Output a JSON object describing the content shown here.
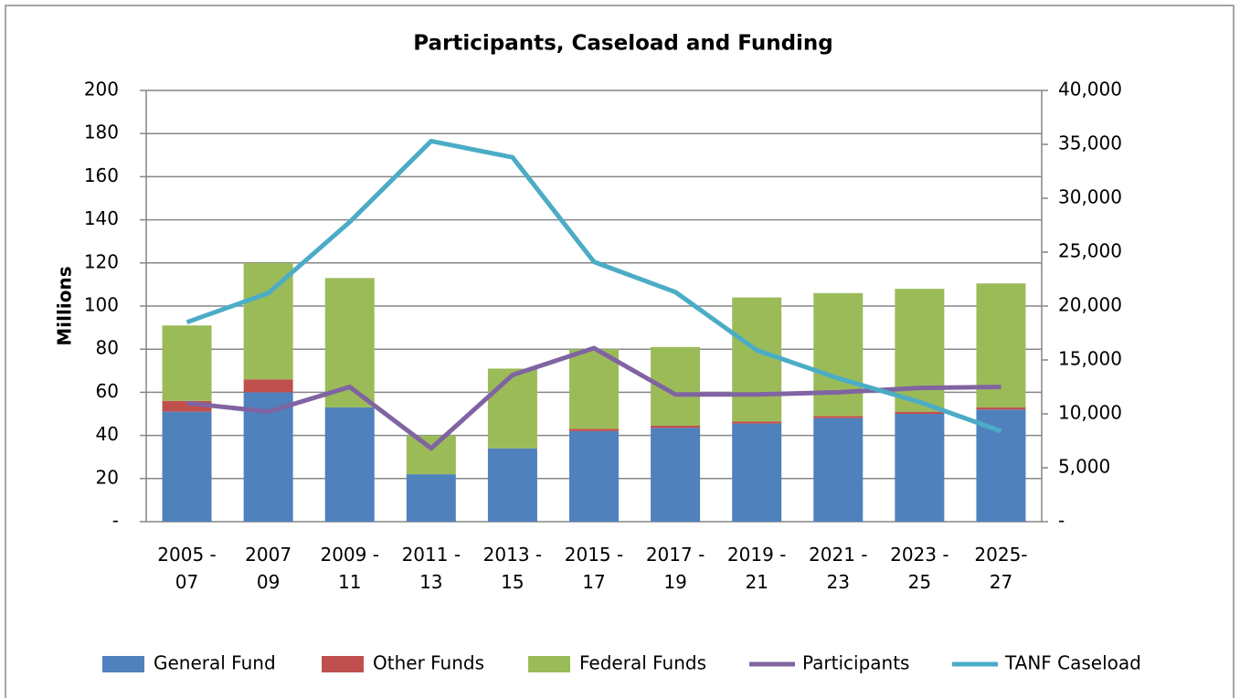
{
  "chart_data": {
    "type": "bar",
    "title": "Participants, Caseload and Funding",
    "y_label": "Millions",
    "categories": [
      "2005 -\n07",
      "2007\n09",
      "2009 -\n11",
      "2011 -\n13",
      "2013 -\n15",
      "2015 -\n17",
      "2017 -\n19",
      "2019 -\n21",
      "2021 -\n23",
      "2023 -\n25",
      "2025-\n27"
    ],
    "series": [
      {
        "name": "General Fund",
        "type": "bar",
        "color": "#4f81bd",
        "values": [
          51,
          60,
          53,
          22,
          34,
          42,
          43.5,
          45.5,
          48,
          50,
          52
        ]
      },
      {
        "name": "Other Funds",
        "type": "bar",
        "color": "#c0504d",
        "values": [
          5,
          6,
          0,
          0,
          0,
          1,
          1,
          1,
          1,
          1,
          1
        ]
      },
      {
        "name": "Federal Funds",
        "type": "bar",
        "color": "#9bbb59",
        "values": [
          35,
          54,
          60,
          18,
          37,
          37,
          36.5,
          57.5,
          57,
          57,
          57.5
        ]
      },
      {
        "name": "Participants",
        "type": "line",
        "axis": "y2",
        "color": "#8064a2",
        "values": [
          11000,
          10200,
          12500,
          6800,
          13600,
          16100,
          11800,
          11800,
          12000,
          12400,
          12500
        ]
      },
      {
        "name": "TANF Caseload",
        "type": "line",
        "axis": "y2",
        "color": "#4bacc6",
        "values": [
          18500,
          21200,
          27800,
          35300,
          33800,
          24100,
          21300,
          15900,
          13300,
          11100,
          8400
        ]
      }
    ],
    "ylim": [
      0,
      200
    ],
    "yticks": [
      {
        "value": 0,
        "label": "-"
      },
      20,
      40,
      60,
      80,
      100,
      120,
      140,
      160,
      180,
      200
    ],
    "y2lim": [
      0,
      40000
    ],
    "y2ticks": [
      {
        "value": 0,
        "label": "-"
      },
      {
        "value": 5000,
        "label": "5,000"
      },
      {
        "value": 10000,
        "label": "10,000"
      },
      {
        "value": 15000,
        "label": "15,000"
      },
      {
        "value": 20000,
        "label": "20,000"
      },
      {
        "value": 25000,
        "label": "25,000"
      },
      {
        "value": 30000,
        "label": "30,000"
      },
      {
        "value": 35000,
        "label": "35,000"
      },
      {
        "value": 40000,
        "label": "40,000"
      }
    ],
    "grid": true,
    "legend": "bottom"
  }
}
